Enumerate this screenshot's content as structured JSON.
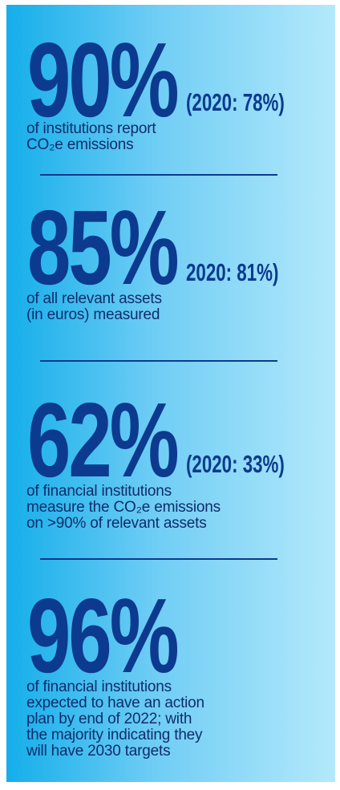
{
  "stats": [
    {
      "value": "90%",
      "comparison": "(2020: 78%)",
      "description": [
        "of institutions report",
        "CO₂e emissions"
      ]
    },
    {
      "value": "85%",
      "comparison": "2020: 81%)",
      "description": [
        "of all relevant assets",
        "(in euros) measured"
      ]
    },
    {
      "value": "62%",
      "comparison": "(2020: 33%)",
      "description": [
        "of financial institutions",
        "measure the CO₂e emissions",
        "on >90% of relevant assets"
      ]
    },
    {
      "value": "96%",
      "description": [
        "of financial institutions",
        "expected to have an action",
        "plan by end of 2022; with",
        "the majority indicating they",
        "will have 2030 targets"
      ]
    }
  ]
}
